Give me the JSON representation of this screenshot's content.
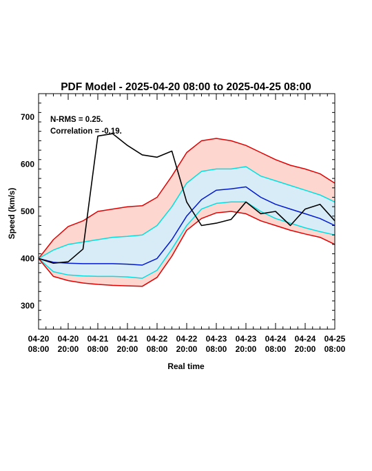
{
  "chart_data": {
    "type": "line",
    "title": "PDF Model - 2025-04-20 08:00 to 2025-04-25 08:00",
    "xlabel": "Real time",
    "ylabel": "Speed (km/s)",
    "xlim": [
      "2025-04-20 08:00",
      "2025-04-25 08:00"
    ],
    "ylim": [
      250,
      750
    ],
    "x_ticks": [
      {
        "at": "2025-04-20 08:00",
        "line1": "04-20",
        "line2": "08:00"
      },
      {
        "at": "2025-04-20 20:00",
        "line1": "04-20",
        "line2": "20:00"
      },
      {
        "at": "2025-04-21 08:00",
        "line1": "04-21",
        "line2": "08:00"
      },
      {
        "at": "2025-04-21 20:00",
        "line1": "04-21",
        "line2": "20:00"
      },
      {
        "at": "2025-04-22 08:00",
        "line1": "04-22",
        "line2": "08:00"
      },
      {
        "at": "2025-04-22 20:00",
        "line1": "04-22",
        "line2": "20:00"
      },
      {
        "at": "2025-04-23 08:00",
        "line1": "04-23",
        "line2": "08:00"
      },
      {
        "at": "2025-04-23 20:00",
        "line1": "04-23",
        "line2": "20:00"
      },
      {
        "at": "2025-04-24 08:00",
        "line1": "04-24",
        "line2": "08:00"
      },
      {
        "at": "2025-04-24 20:00",
        "line1": "04-24",
        "line2": "20:00"
      },
      {
        "at": "2025-04-25 08:00",
        "line1": "04-25",
        "line2": "08:00"
      }
    ],
    "y_ticks": [
      300,
      400,
      500,
      600,
      700
    ],
    "annotations": [
      "N-RMS = 0.25.",
      "Correlation = -0.19."
    ],
    "grid": false,
    "x": [
      "2025-04-20 08:00",
      "2025-04-20 14:00",
      "2025-04-20 20:00",
      "2025-04-21 02:00",
      "2025-04-21 08:00",
      "2025-04-21 14:00",
      "2025-04-21 20:00",
      "2025-04-22 02:00",
      "2025-04-22 08:00",
      "2025-04-22 14:00",
      "2025-04-22 20:00",
      "2025-04-23 02:00",
      "2025-04-23 08:00",
      "2025-04-23 14:00",
      "2025-04-23 20:00",
      "2025-04-24 02:00",
      "2025-04-24 08:00",
      "2025-04-24 14:00",
      "2025-04-24 20:00",
      "2025-04-25 02:00",
      "2025-04-25 08:00"
    ],
    "series": [
      {
        "role": "outer_upper",
        "color": "#e00000",
        "values": [
          400,
          440,
          468,
          480,
          500,
          505,
          510,
          512,
          530,
          575,
          625,
          650,
          655,
          650,
          640,
          625,
          610,
          598,
          590,
          580,
          560
        ]
      },
      {
        "role": "inner_upper",
        "color": "#00e0e0",
        "values": [
          400,
          418,
          430,
          435,
          440,
          445,
          447,
          450,
          470,
          510,
          560,
          585,
          590,
          590,
          595,
          575,
          565,
          555,
          545,
          535,
          520
        ]
      },
      {
        "role": "median",
        "color": "#0018d0",
        "values": [
          400,
          392,
          390,
          389,
          389,
          389,
          388,
          386,
          400,
          440,
          490,
          525,
          545,
          548,
          552,
          530,
          515,
          505,
          495,
          485,
          470
        ]
      },
      {
        "role": "inner_lower",
        "color": "#00e0e0",
        "values": [
          400,
          372,
          365,
          363,
          362,
          362,
          361,
          358,
          375,
          420,
          470,
          505,
          517,
          520,
          520,
          500,
          485,
          475,
          465,
          457,
          450
        ]
      },
      {
        "role": "outer_lower",
        "color": "#e00000",
        "values": [
          400,
          362,
          353,
          348,
          345,
          343,
          342,
          341,
          360,
          405,
          460,
          485,
          497,
          500,
          495,
          480,
          470,
          460,
          452,
          445,
          430
        ]
      },
      {
        "role": "observed",
        "color": "#000000",
        "values": [
          400,
          390,
          393,
          420,
          660,
          665,
          640,
          620,
          615,
          628,
          520,
          470,
          475,
          483,
          520,
          495,
          500,
          470,
          505,
          515,
          480
        ]
      }
    ],
    "colors": {
      "outer_band_fill": "#fdd6d0",
      "inner_band_fill": "#d8ecf8"
    }
  }
}
